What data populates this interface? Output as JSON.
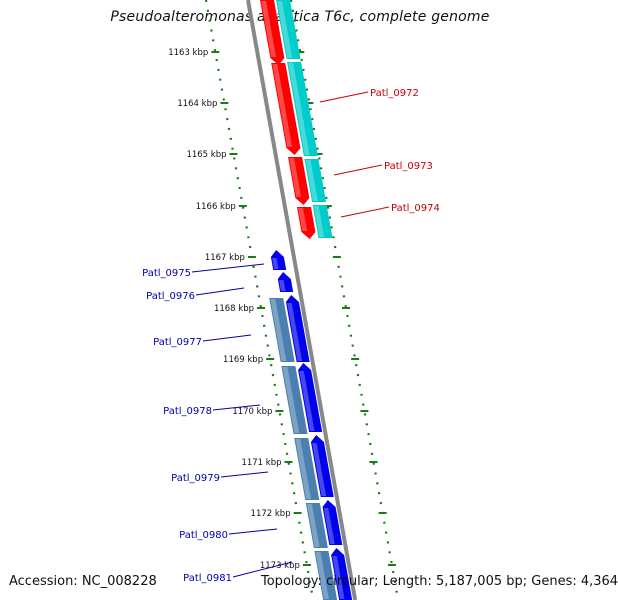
{
  "title": "Pseudoalteromonas atlantica T6c, complete genome",
  "footer": {
    "accession": "Accession: NC_008228",
    "topology": "Topology: circular; Length: 5,187,005 bp; Genes: 4,364"
  },
  "colors": {
    "forward_gene": "#ff0000",
    "forward_cds": "#00cccc",
    "reverse_gene": "#0000ee",
    "reverse_cds": "#4a7fb0",
    "backbone": "#888888",
    "ticks": "#1a7a1a",
    "forward_label": "#cc0000",
    "reverse_label": "#0000aa"
  },
  "ticks": [
    "1163 kbp",
    "1164 kbp",
    "1165 kbp",
    "1166 kbp",
    "1167 kbp",
    "1168 kbp",
    "1169 kbp",
    "1170 kbp",
    "1171 kbp",
    "1172 kbp",
    "1173 kbp"
  ],
  "forward_genes": [
    {
      "label": "Patl_0972"
    },
    {
      "label": "Patl_0973"
    },
    {
      "label": "Patl_0974"
    }
  ],
  "reverse_genes": [
    {
      "label": "Patl_0975"
    },
    {
      "label": "Patl_0976"
    },
    {
      "label": "Patl_0977"
    },
    {
      "label": "Patl_0978"
    },
    {
      "label": "Patl_0979"
    },
    {
      "label": "Patl_0980"
    },
    {
      "label": "Patl_0981"
    }
  ]
}
